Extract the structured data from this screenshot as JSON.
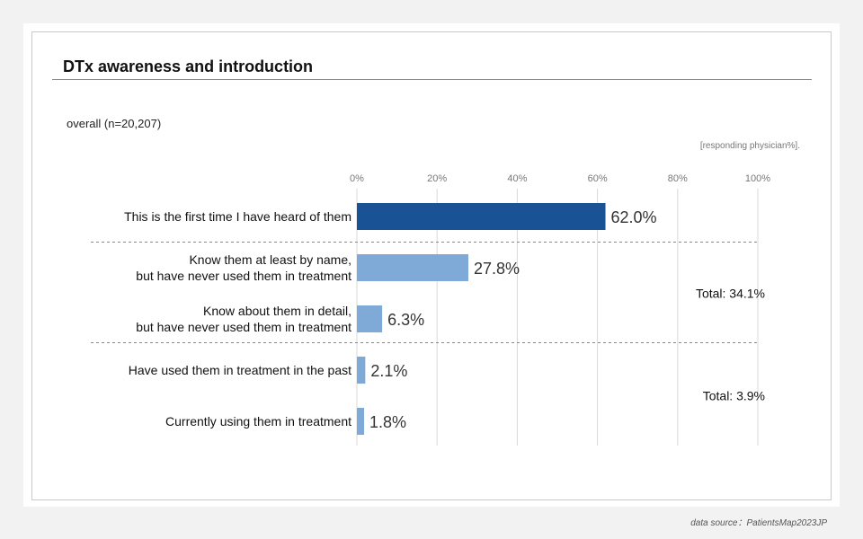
{
  "title": "DTx awareness and introduction",
  "subtitle": "overall  (n=20,207)",
  "unit_note": "[responding physician%].",
  "footer": "data source：PatientsMap2023JP",
  "colors": {
    "primary": "#1a5296",
    "secondary": "#7faad8",
    "grid": "#d9d9d9",
    "divider": "#888888"
  },
  "chart_data": {
    "type": "bar",
    "orientation": "horizontal",
    "categories": [
      "This is the first time I have heard of them",
      "Know them at least by name,\nbut have never used them in treatment",
      "Know about them in detail,\nbut have never used them in treatment",
      "Have used them in treatment in the past",
      "Currently  using them in treatment"
    ],
    "values": [
      62.0,
      27.8,
      6.3,
      2.1,
      1.8
    ],
    "value_labels": [
      "62.0%",
      "27.8%",
      "6.3%",
      "2.1%",
      "1.8%"
    ],
    "x_ticks": [
      0,
      20,
      40,
      60,
      80,
      100
    ],
    "x_tick_labels": [
      "0%",
      "20%",
      "40%",
      "60%",
      "80%",
      "100%"
    ],
    "xlim": [
      0,
      100
    ],
    "grid": true,
    "axis_position": "top",
    "groups": [
      {
        "categories": [
          0
        ],
        "total_label": ""
      },
      {
        "categories": [
          1,
          2
        ],
        "total_label": "Total:  34.1%"
      },
      {
        "categories": [
          3,
          4
        ],
        "total_label": "Total:  3.9%"
      }
    ],
    "bar_colors": [
      "#1a5296",
      "#7faad8",
      "#7faad8",
      "#7faad8",
      "#7faad8"
    ]
  }
}
